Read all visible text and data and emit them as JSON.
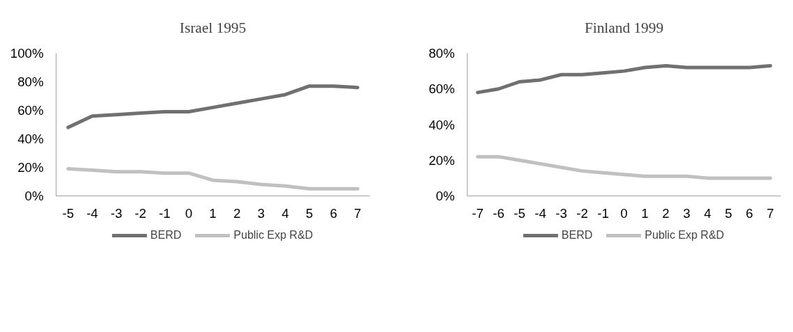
{
  "chart_data": [
    {
      "type": "line",
      "title": "Israel 1995",
      "categories": [
        "-5",
        "-4",
        "-3",
        "-2",
        "-1",
        "0",
        "1",
        "2",
        "3",
        "4",
        "5",
        "6",
        "7"
      ],
      "series": [
        {
          "name": "BERD",
          "color": "#707070",
          "values": [
            48,
            56,
            57,
            58,
            59,
            59,
            62,
            65,
            68,
            71,
            77,
            77,
            76
          ]
        },
        {
          "name": "Public Exp R&D",
          "color": "#c0c0c0",
          "values": [
            19,
            18,
            17,
            17,
            16,
            16,
            11,
            10,
            8,
            7,
            5,
            5,
            5
          ]
        }
      ],
      "ylim": [
        0,
        100
      ],
      "yticks": [
        {
          "value": 0,
          "label": "0%"
        },
        {
          "value": 20,
          "label": "20%"
        },
        {
          "value": 40,
          "label": "40%"
        },
        {
          "value": 60,
          "label": "60%"
        },
        {
          "value": 80,
          "label": "80%"
        },
        {
          "value": 100,
          "label": "100%"
        }
      ],
      "grid": false,
      "legend": "bottom",
      "marker": "none",
      "line_style": "solid"
    },
    {
      "type": "line",
      "title": "Finland 1999",
      "categories": [
        "-7",
        "-6",
        "-5",
        "-4",
        "-3",
        "-2",
        "-1",
        "0",
        "1",
        "2",
        "3",
        "4",
        "5",
        "6",
        "7"
      ],
      "series": [
        {
          "name": "BERD",
          "color": "#707070",
          "values": [
            58,
            60,
            64,
            65,
            68,
            68,
            69,
            70,
            72,
            73,
            72,
            72,
            72,
            72,
            73
          ]
        },
        {
          "name": "Public Exp R&D",
          "color": "#c0c0c0",
          "values": [
            22,
            22,
            20,
            18,
            16,
            14,
            13,
            12,
            11,
            11,
            11,
            10,
            10,
            10,
            10
          ]
        }
      ],
      "ylim": [
        0,
        80
      ],
      "yticks": [
        {
          "value": 0,
          "label": "0%"
        },
        {
          "value": 20,
          "label": "20%"
        },
        {
          "value": 40,
          "label": "40%"
        },
        {
          "value": 60,
          "label": "60%"
        },
        {
          "value": 80,
          "label": "80%"
        }
      ],
      "grid": false,
      "legend": "bottom",
      "marker": "none",
      "line_style": "solid"
    }
  ]
}
